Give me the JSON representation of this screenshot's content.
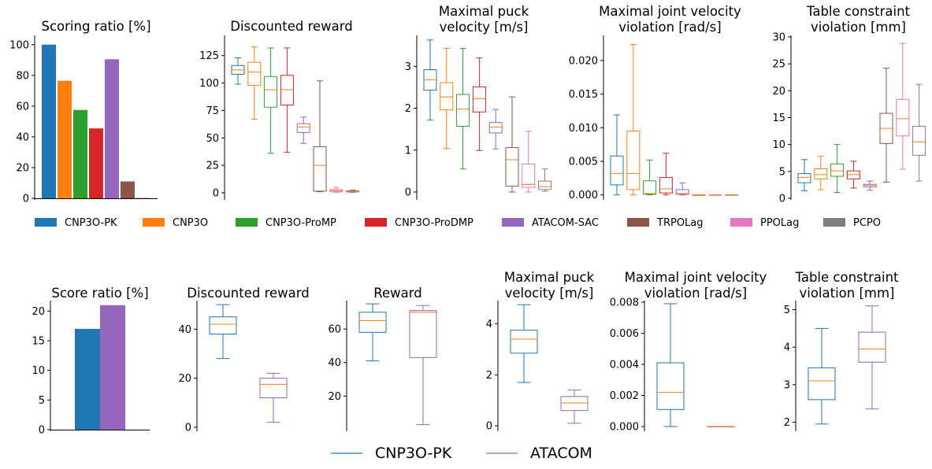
{
  "colors": {
    "CNP3O-PK": "#1f77b4",
    "CNP3O": "#ff7f0e",
    "CNP3O-ProMP": "#2ca02c",
    "CNP3O-ProDMP": "#d62728",
    "ATACOM-SAC": "#9467bd",
    "TRPOLag": "#8c564b",
    "PPOLag": "#e377c2",
    "PCPO": "#7f7f7f",
    "median": "#ff7f0e"
  },
  "legend_top": [
    "CNP3O-PK",
    "CNP3O",
    "CNP3O-ProMP",
    "CNP3O-ProDMP",
    "ATACOM-SAC",
    "TRPOLag",
    "PPOLag",
    "PCPO"
  ],
  "legend_bottom": [
    {
      "label": "CNP3O-PK",
      "color_key": "CNP3O-PK"
    },
    {
      "label": "ATACOM",
      "color_key": "ATACOM-SAC"
    }
  ],
  "chart_data": [
    {
      "type": "bar",
      "title": [
        "Scoring ratio [%]"
      ],
      "categories": [
        "CNP3O-PK",
        "CNP3O",
        "CNP3O-ProMP",
        "CNP3O-ProDMP",
        "ATACOM-SAC",
        "TRPOLag",
        "PPOLag",
        "PCPO"
      ],
      "values": [
        100,
        76.5,
        57.5,
        45.5,
        90.5,
        11,
        0.3,
        0
      ],
      "ylim": [
        0,
        105
      ],
      "yticks": [
        0,
        20,
        40,
        60,
        80,
        100
      ],
      "yticklabels": [
        "0",
        "20",
        "40",
        "60",
        "80",
        "100"
      ]
    },
    {
      "type": "box",
      "title": [
        "Discounted reward"
      ],
      "categories": [
        "CNP3O-PK",
        "CNP3O",
        "CNP3O-ProMP",
        "CNP3O-ProDMP",
        "ATACOM-SAC",
        "TRPOLag",
        "PPOLag",
        "PCPO"
      ],
      "boxes": [
        {
          "whislo": 99,
          "q1": 108,
          "med": 112,
          "q3": 116,
          "whishi": 123
        },
        {
          "whislo": 67,
          "q1": 98,
          "med": 110,
          "q3": 119,
          "whishi": 133
        },
        {
          "whislo": 36,
          "q1": 78,
          "med": 94,
          "q3": 106,
          "whishi": 132
        },
        {
          "whislo": 37,
          "q1": 80,
          "med": 94,
          "q3": 107,
          "whishi": 132
        },
        {
          "whislo": 45,
          "q1": 55,
          "med": 60,
          "q3": 63,
          "whishi": 69
        },
        {
          "whislo": 1,
          "q1": 1.5,
          "med": 25,
          "q3": 42,
          "whishi": 102
        },
        {
          "whislo": 0.5,
          "q1": 1,
          "med": 2,
          "q3": 3,
          "whishi": 5
        },
        {
          "whislo": 0.5,
          "q1": 0.8,
          "med": 1.2,
          "q3": 1.8,
          "whishi": 2.5
        }
      ],
      "ylim": [
        -5,
        142
      ],
      "yticks": [
        0,
        25,
        50,
        75,
        100,
        125
      ],
      "yticklabels": [
        "0",
        "25",
        "50",
        "75",
        "100",
        "125"
      ]
    },
    {
      "type": "box",
      "title": [
        "Maximal puck",
        "velocity [m/s]"
      ],
      "categories": [
        "CNP3O-PK",
        "CNP3O",
        "CNP3O-ProMP",
        "CNP3O-ProDMP",
        "ATACOM-SAC",
        "TRPOLag",
        "PPOLag",
        "PCPO"
      ],
      "boxes": [
        {
          "whislo": 1.72,
          "q1": 2.43,
          "med": 2.68,
          "q3": 2.92,
          "whishi": 3.63
        },
        {
          "whislo": 1.04,
          "q1": 1.96,
          "med": 2.27,
          "q3": 2.61,
          "whishi": 3.43
        },
        {
          "whislo": 0.55,
          "q1": 1.57,
          "med": 1.98,
          "q3": 2.33,
          "whishi": 3.43
        },
        {
          "whislo": 0.99,
          "q1": 1.91,
          "med": 2.23,
          "q3": 2.51,
          "whishi": 3.2
        },
        {
          "whislo": 1.03,
          "q1": 1.41,
          "med": 1.55,
          "q3": 1.66,
          "whishi": 1.97
        },
        {
          "whislo": 0,
          "q1": 0.14,
          "med": 0.77,
          "q3": 1.06,
          "whishi": 2.27
        },
        {
          "whislo": 0,
          "q1": 0.11,
          "med": 0.18,
          "q3": 0.67,
          "whishi": 1.45
        },
        {
          "whislo": 0.02,
          "q1": 0.06,
          "med": 0.13,
          "q3": 0.26,
          "whishi": 0.55
        }
      ],
      "ylim": [
        -0.15,
        3.7
      ],
      "yticks": [
        0,
        1,
        2,
        3
      ],
      "yticklabels": [
        "0",
        "1",
        "2",
        "3"
      ]
    },
    {
      "type": "box",
      "title": [
        "Maximal joint velocity",
        "violation [rad/s]"
      ],
      "categories": [
        "CNP3O-PK",
        "CNP3O",
        "CNP3O-ProMP",
        "CNP3O-ProDMP",
        "ATACOM-SAC",
        "TRPOLag",
        "PPOLag",
        "PCPO"
      ],
      "boxes": [
        {
          "whislo": 0,
          "q1": 0.0015,
          "med": 0.0032,
          "q3": 0.0058,
          "whishi": 0.0119
        },
        {
          "whislo": 0,
          "q1": 0.0008,
          "med": 0.0032,
          "q3": 0.0095,
          "whishi": 0.0224
        },
        {
          "whislo": 0,
          "q1": 0.0001,
          "med": 0.0002,
          "q3": 0.0021,
          "whishi": 0.0052
        },
        {
          "whislo": 0,
          "q1": 0.0003,
          "med": 0.0009,
          "q3": 0.0026,
          "whishi": 0.0062
        },
        {
          "whislo": 0,
          "q1": 0.0001,
          "med": 0.0002,
          "q3": 0.0008,
          "whishi": 0.0018
        },
        {
          "whislo": 0,
          "q1": 0,
          "med": 0,
          "q3": 0,
          "whishi": 0
        },
        {
          "whislo": 0,
          "q1": 0,
          "med": 0,
          "q3": 0,
          "whishi": 0
        },
        {
          "whislo": 0,
          "q1": 0,
          "med": 0,
          "q3": 0,
          "whishi": 0
        }
      ],
      "ylim": [
        -0.0005,
        0.0235
      ],
      "yticks": [
        0,
        0.005,
        0.01,
        0.015,
        0.02
      ],
      "yticklabels": [
        "0.000",
        "0.005",
        "0.010",
        "0.015",
        "0.020"
      ]
    },
    {
      "type": "box",
      "title": [
        "Table constraint",
        "violation [mm]"
      ],
      "categories": [
        "CNP3O-PK",
        "CNP3O",
        "CNP3O-ProMP",
        "CNP3O-ProDMP",
        "ATACOM-SAC",
        "TRPOLag",
        "PPOLag",
        "PCPO"
      ],
      "boxes": [
        {
          "whislo": 1.4,
          "q1": 2.9,
          "med": 3.9,
          "q3": 4.6,
          "whishi": 7.2
        },
        {
          "whislo": 1.6,
          "q1": 3.6,
          "med": 4.4,
          "q3": 5.5,
          "whishi": 7.8
        },
        {
          "whislo": 1.1,
          "q1": 4.1,
          "med": 5.1,
          "q3": 6.4,
          "whishi": 10.0
        },
        {
          "whislo": 1.9,
          "q1": 3.6,
          "med": 4.4,
          "q3": 5.1,
          "whishi": 6.9
        },
        {
          "whislo": 1.5,
          "q1": 2.1,
          "med": 2.4,
          "q3": 2.6,
          "whishi": 3.2
        },
        {
          "whislo": 3.0,
          "q1": 10.2,
          "med": 13.0,
          "q3": 15.8,
          "whishi": 24.2
        },
        {
          "whislo": 5.4,
          "q1": 11.6,
          "med": 14.8,
          "q3": 18.4,
          "whishi": 28.8
        },
        {
          "whislo": 3.2,
          "q1": 8.0,
          "med": 10.5,
          "q3": 13.4,
          "whishi": 21.2
        }
      ],
      "ylim": [
        0,
        30
      ],
      "yticks": [
        0,
        5,
        10,
        15,
        20,
        25,
        30
      ],
      "yticklabels": [
        "0",
        "5",
        "10",
        "15",
        "20",
        "25",
        "30"
      ]
    },
    {
      "type": "bar",
      "title": [
        "Score ratio [%]"
      ],
      "categories": [
        "CNP3O-PK",
        "ATACOM"
      ],
      "values": [
        17,
        21
      ],
      "ylim": [
        0,
        21.5
      ],
      "yticks": [
        0,
        5,
        10,
        15,
        20
      ],
      "yticklabels": [
        "0",
        "5",
        "10",
        "15",
        "20"
      ]
    },
    {
      "type": "box",
      "title": [
        "Discounted reward"
      ],
      "categories": [
        "CNP3O-PK",
        "ATACOM"
      ],
      "boxes": [
        {
          "whislo": 28,
          "q1": 38,
          "med": 42,
          "q3": 45,
          "whishi": 50
        },
        {
          "whislo": 2,
          "q1": 12,
          "med": 17.5,
          "q3": 20,
          "whishi": 22
        }
      ],
      "ylim": [
        -1,
        51
      ],
      "yticks": [
        0,
        20,
        40
      ],
      "yticklabels": [
        "0",
        "20",
        "40"
      ]
    },
    {
      "type": "box",
      "title": [
        "Reward"
      ],
      "categories": [
        "CNP3O-PK",
        "ATACOM"
      ],
      "boxes": [
        {
          "whislo": 41,
          "q1": 58,
          "med": 65,
          "q3": 70,
          "whishi": 75
        },
        {
          "whislo": 3,
          "q1": 43,
          "med": 70,
          "q3": 71,
          "whishi": 74
        }
      ],
      "ylim": [
        0,
        76
      ],
      "yticks": [
        20,
        40,
        60
      ],
      "yticklabels": [
        "20",
        "40",
        "60"
      ]
    },
    {
      "type": "box",
      "title": [
        "Maximal puck",
        "velocity [m/s]"
      ],
      "categories": [
        "CNP3O-PK",
        "ATACOM"
      ],
      "boxes": [
        {
          "whislo": 1.7,
          "q1": 2.85,
          "med": 3.4,
          "q3": 3.75,
          "whishi": 4.75
        },
        {
          "whislo": 0.1,
          "q1": 0.6,
          "med": 0.9,
          "q3": 1.15,
          "whishi": 1.4
        }
      ],
      "ylim": [
        -0.15,
        4.85
      ],
      "yticks": [
        0,
        2,
        4
      ],
      "yticklabels": [
        "0",
        "2",
        "4"
      ]
    },
    {
      "type": "box",
      "title": [
        "Maximal joint velocity",
        "violation [rad/s]"
      ],
      "categories": [
        "CNP3O-PK",
        "ATACOM"
      ],
      "boxes": [
        {
          "whislo": 0,
          "q1": 0.0011,
          "med": 0.0022,
          "q3": 0.0041,
          "whishi": 0.0079
        },
        {
          "whislo": 0,
          "q1": 0,
          "med": 0,
          "q3": 0,
          "whishi": 0
        }
      ],
      "ylim": [
        -0.0002,
        0.008
      ],
      "yticks": [
        0,
        0.002,
        0.004,
        0.006,
        0.008
      ],
      "yticklabels": [
        "0.000",
        "0.002",
        "0.004",
        "0.006",
        "0.008"
      ]
    },
    {
      "type": "box",
      "title": [
        "Table constraint",
        "violation [mm]"
      ],
      "categories": [
        "CNP3O-PK",
        "ATACOM"
      ],
      "boxes": [
        {
          "whislo": 1.95,
          "q1": 2.6,
          "med": 3.1,
          "q3": 3.45,
          "whishi": 4.5
        },
        {
          "whislo": 2.35,
          "q1": 3.6,
          "med": 3.95,
          "q3": 4.4,
          "whishi": 5.1
        }
      ],
      "ylim": [
        1.8,
        5.2
      ],
      "yticks": [
        2,
        3,
        4,
        5
      ],
      "yticklabels": [
        "2",
        "3",
        "4",
        "5"
      ]
    }
  ]
}
